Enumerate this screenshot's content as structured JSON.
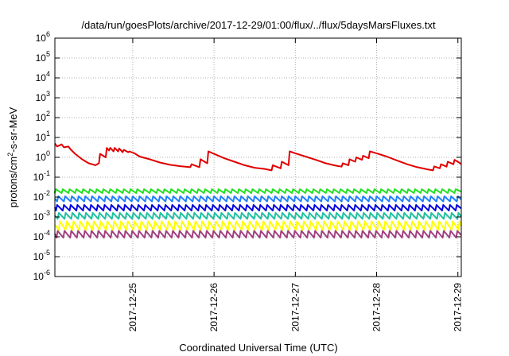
{
  "chart_data": {
    "type": "line",
    "title": "/data/run/goesPlots/archive/2017-12-29/01:00/flux/../flux/5daysMarsFluxes.txt",
    "xlabel": "Coordinated Universal Time (UTC)",
    "ylabel": {
      "base": "protons/cm",
      "sup": "2",
      "rest": "-s-sr-MeV"
    },
    "y_scale": "log",
    "ylim": [
      1e-06,
      1000000.0
    ],
    "y_ticks": [
      {
        "value": 1e-06,
        "base": "10",
        "exp": "-6"
      },
      {
        "value": 1e-05,
        "base": "10",
        "exp": "-5"
      },
      {
        "value": 0.0001,
        "base": "10",
        "exp": "-4"
      },
      {
        "value": 0.001,
        "base": "10",
        "exp": "-3"
      },
      {
        "value": 0.01,
        "base": "10",
        "exp": "-2"
      },
      {
        "value": 0.1,
        "base": "10",
        "exp": "-1"
      },
      {
        "value": 1,
        "base": "10",
        "exp": "0"
      },
      {
        "value": 10,
        "base": "10",
        "exp": "1"
      },
      {
        "value": 100,
        "base": "10",
        "exp": "2"
      },
      {
        "value": 1000,
        "base": "10",
        "exp": "3"
      },
      {
        "value": 10000,
        "base": "10",
        "exp": "4"
      },
      {
        "value": 100000,
        "base": "10",
        "exp": "5"
      },
      {
        "value": 1000000,
        "base": "10",
        "exp": "6"
      }
    ],
    "xlim": [
      "2017-12-24T01:00",
      "2017-12-29T01:00"
    ],
    "x_ticks": [
      {
        "value": "2017-12-25T00:00",
        "label": "2017-12-25"
      },
      {
        "value": "2017-12-26T00:00",
        "label": "2017-12-26"
      },
      {
        "value": "2017-12-27T00:00",
        "label": "2017-12-27"
      },
      {
        "value": "2017-12-28T00:00",
        "label": "2017-12-28"
      },
      {
        "value": "2017-12-29T00:00",
        "label": "2017-12-29"
      }
    ],
    "grid": true,
    "legend": "none",
    "series": [
      {
        "color": "#e00000",
        "x": [
          "2017-12-24T01:00",
          "2017-12-24T01:40",
          "2017-12-24T03:00",
          "2017-12-24T03:40",
          "2017-12-24T05:00",
          "2017-12-24T05:40",
          "2017-12-24T07:00",
          "2017-12-24T09:00",
          "2017-12-24T11:00",
          "2017-12-24T13:00",
          "2017-12-24T14:00",
          "2017-12-24T14:20",
          "2017-12-24T16:00",
          "2017-12-24T16:20",
          "2017-12-24T17:00",
          "2017-12-24T17:20",
          "2017-12-24T18:20",
          "2017-12-24T18:40",
          "2017-12-24T19:40",
          "2017-12-24T20:00",
          "2017-12-24T21:00",
          "2017-12-24T21:20",
          "2017-12-24T22:40",
          "2017-12-24T23:00",
          "2017-12-25T00:30",
          "2017-12-25T02:00",
          "2017-12-25T05:00",
          "2017-12-25T08:00",
          "2017-12-25T11:00",
          "2017-12-25T14:00",
          "2017-12-25T17:00",
          "2017-12-25T17:20",
          "2017-12-25T19:40",
          "2017-12-25T20:00",
          "2017-12-25T22:00",
          "2017-12-25T22:20",
          "2017-12-26T00:00",
          "2017-12-26T03:00",
          "2017-12-26T06:00",
          "2017-12-26T09:00",
          "2017-12-26T12:00",
          "2017-12-26T15:00",
          "2017-12-26T17:00",
          "2017-12-26T17:20",
          "2017-12-26T19:40",
          "2017-12-26T20:00",
          "2017-12-26T22:00",
          "2017-12-26T22:20",
          "2017-12-27T00:00",
          "2017-12-27T03:00",
          "2017-12-27T06:00",
          "2017-12-27T09:00",
          "2017-12-27T12:00",
          "2017-12-27T13:40",
          "2017-12-27T14:00",
          "2017-12-27T15:40",
          "2017-12-27T16:00",
          "2017-12-27T17:40",
          "2017-12-27T18:00",
          "2017-12-27T19:40",
          "2017-12-27T20:00",
          "2017-12-27T21:40",
          "2017-12-27T22:00",
          "2017-12-28T00:00",
          "2017-12-28T03:00",
          "2017-12-28T06:00",
          "2017-12-28T09:00",
          "2017-12-28T12:00",
          "2017-12-28T15:00",
          "2017-12-28T16:40",
          "2017-12-28T17:00",
          "2017-12-28T18:40",
          "2017-12-28T19:00",
          "2017-12-28T20:40",
          "2017-12-28T21:00",
          "2017-12-28T22:40",
          "2017-12-28T23:00",
          "2017-12-29T00:20",
          "2017-12-29T01:00"
        ],
        "y": [
          5,
          3.5,
          4.5,
          3.2,
          3.5,
          2.5,
          1.5,
          0.8,
          0.5,
          0.4,
          0.5,
          1.5,
          1.0,
          3.0,
          2.2,
          3.0,
          2.0,
          3.0,
          2.0,
          2.8,
          1.8,
          2.4,
          1.8,
          2.0,
          1.6,
          1.1,
          0.8,
          0.55,
          0.42,
          0.36,
          0.32,
          0.45,
          0.32,
          0.8,
          0.5,
          2.0,
          1.5,
          0.9,
          0.6,
          0.4,
          0.3,
          0.26,
          0.22,
          0.4,
          0.28,
          0.6,
          0.4,
          2.0,
          1.6,
          1.1,
          0.75,
          0.5,
          0.38,
          0.34,
          0.5,
          0.4,
          0.8,
          0.6,
          1.0,
          0.75,
          1.2,
          0.9,
          2.0,
          1.6,
          1.1,
          0.7,
          0.45,
          0.32,
          0.25,
          0.22,
          0.35,
          0.28,
          0.45,
          0.34,
          0.6,
          0.45,
          0.75,
          0.55,
          0.45
        ]
      },
      {
        "color": "#22e022",
        "start": "2017-12-24T01:00",
        "period_minutes": 120,
        "peak": 0.025,
        "trough": 0.016
      },
      {
        "color": "#2080ff",
        "start": "2017-12-24T01:40",
        "period_minutes": 120,
        "peak": 0.011,
        "trough": 0.006
      },
      {
        "color": "#0000dd",
        "start": "2017-12-24T01:20",
        "period_minutes": 120,
        "peak": 0.004,
        "trough": 0.0021
      },
      {
        "color": "#20c0a0",
        "start": "2017-12-24T01:50",
        "period_minutes": 120,
        "peak": 0.0016,
        "trough": 0.0008
      },
      {
        "color": "#ffff00",
        "start": "2017-12-24T02:10",
        "period_minutes": 120,
        "peak": 0.0006,
        "trough": 0.00022
      },
      {
        "color": "#a04080",
        "start": "2017-12-24T01:30",
        "period_minutes": 120,
        "peak": 0.0002,
        "trough": 9e-05
      }
    ]
  }
}
